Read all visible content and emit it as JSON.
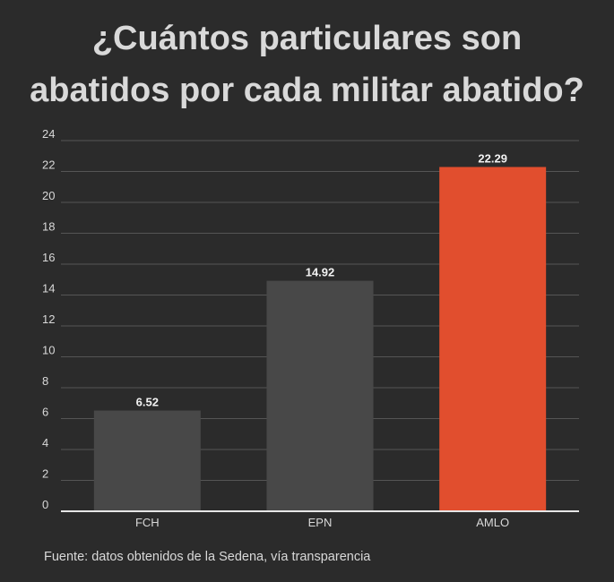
{
  "chart_data": {
    "type": "bar",
    "title": "¿Cuántos particulares son abatidos por cada militar abatido?",
    "title_lines": [
      "¿Cuántos particulares son",
      "abatidos por cada militar abatido?"
    ],
    "categories": [
      "FCH",
      "EPN",
      "AMLO"
    ],
    "values": [
      6.52,
      14.92,
      22.29
    ],
    "value_labels": [
      "6.52",
      "14.92",
      "22.29"
    ],
    "bar_colors": [
      "#484848",
      "#484848",
      "#e14e2e"
    ],
    "ylim": [
      0,
      24
    ],
    "yticks": [
      "0",
      "2",
      "4",
      "6",
      "8",
      "10",
      "12",
      "14",
      "16",
      "18",
      "20",
      "22",
      "24"
    ],
    "xlabel": "",
    "ylabel": "",
    "grid": true,
    "legend": "none"
  },
  "source": "Fuente: datos obtenidos de la Sedena, vía transparencia",
  "colors": {
    "background": "#2b2b2b",
    "text": "#d9d9d9",
    "bar_default": "#484848",
    "bar_highlight": "#e14e2e",
    "grid": "#555555",
    "baseline": "#e6e6e6"
  }
}
